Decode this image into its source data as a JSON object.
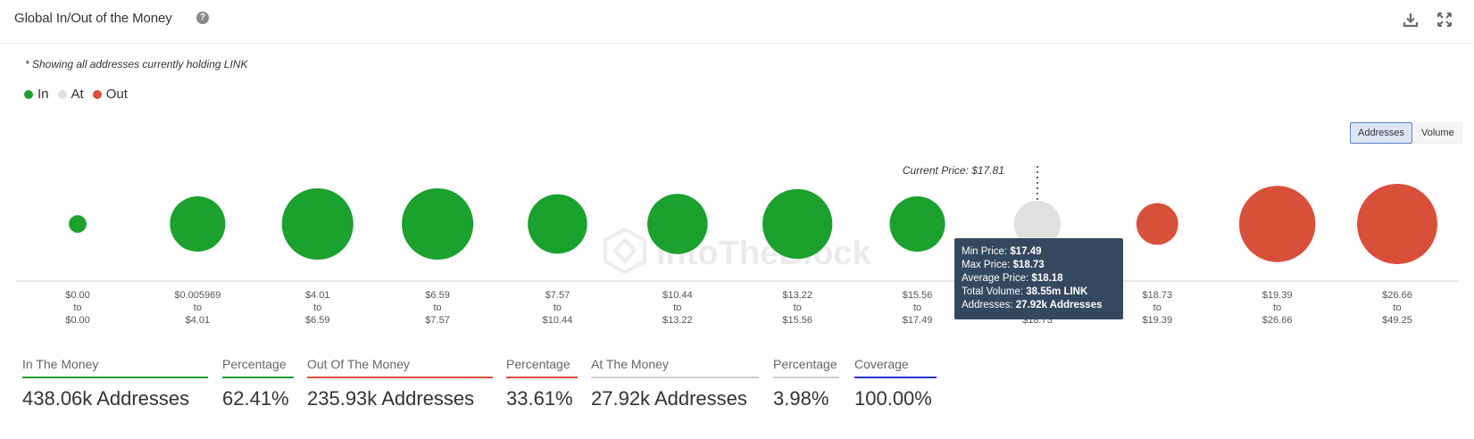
{
  "header": {
    "title": "Global In/Out of the Money",
    "help_symbol": "?"
  },
  "note": "* Showing all addresses currently holding LINK",
  "legend": [
    {
      "label": "In",
      "color": "#1ba12e"
    },
    {
      "label": "At",
      "color": "#e0e0e0"
    },
    {
      "label": "Out",
      "color": "#d9503a"
    }
  ],
  "toggles": {
    "addresses": "Addresses",
    "volume": "Volume"
  },
  "watermark": "IntoTheBlock",
  "chart_data": {
    "type": "bubble",
    "current_price_label": "Current Price: $17.81",
    "current_price": 17.81,
    "buckets": [
      {
        "min": "$0.00",
        "max": "$0.00",
        "status": "in",
        "size": 0.22
      },
      {
        "min": "$0.005969",
        "max": "$4.01",
        "status": "in",
        "size": 0.69
      },
      {
        "min": "$4.01",
        "max": "$6.59",
        "status": "in",
        "size": 0.89
      },
      {
        "min": "$6.59",
        "max": "$7.57",
        "status": "in",
        "size": 0.89
      },
      {
        "min": "$7.57",
        "max": "$10.44",
        "status": "in",
        "size": 0.74
      },
      {
        "min": "$10.44",
        "max": "$13.22",
        "status": "in",
        "size": 0.75
      },
      {
        "min": "$13.22",
        "max": "$15.56",
        "status": "in",
        "size": 0.87
      },
      {
        "min": "$15.56",
        "max": "$17.49",
        "status": "in",
        "size": 0.69
      },
      {
        "min": "$17.49",
        "max": "$18.73",
        "status": "at",
        "size": 0.58
      },
      {
        "min": "$18.73",
        "max": "$19.39",
        "status": "out",
        "size": 0.52
      },
      {
        "min": "$19.39",
        "max": "$26.66",
        "status": "out",
        "size": 0.95
      },
      {
        "min": "$26.66",
        "max": "$49.25",
        "status": "out",
        "size": 1.0
      }
    ],
    "to_word": "to",
    "colors": {
      "in": "#1ba12e",
      "at": "#e0e0e0",
      "out": "#d9503a"
    }
  },
  "tooltip": {
    "min_label": "Min Price:",
    "min_value": "$17.49",
    "max_label": "Max Price:",
    "max_value": "$18.73",
    "avg_label": "Average Price:",
    "avg_value": "$18.18",
    "vol_label": "Total Volume:",
    "vol_value": "38.55m LINK",
    "addr_label": "Addresses:",
    "addr_value": "27.92k Addresses"
  },
  "stats": [
    {
      "label": "In The Money",
      "value": "438.06k Addresses",
      "color": "#1ba12e"
    },
    {
      "label": "Percentage",
      "value": "62.41%",
      "color": "#1ba12e"
    },
    {
      "label": "Out Of The Money",
      "value": "235.93k Addresses",
      "color": "#d9503a"
    },
    {
      "label": "Percentage",
      "value": "33.61%",
      "color": "#d9503a"
    },
    {
      "label": "At The Money",
      "value": "27.92k Addresses",
      "color": "#cccccc"
    },
    {
      "label": "Percentage",
      "value": "3.98%",
      "color": "#cccccc"
    },
    {
      "label": "Coverage",
      "value": "100.00%",
      "color": "#2b35d8"
    }
  ]
}
